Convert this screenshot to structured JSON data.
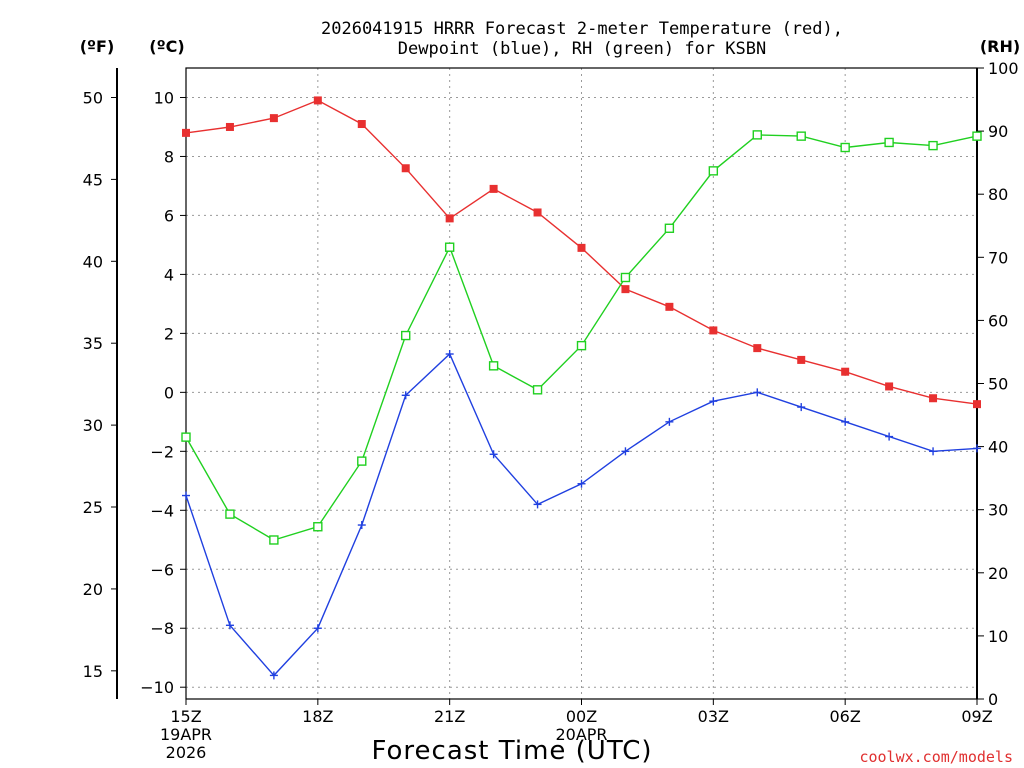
{
  "title_line1": "2026041915 HRRR Forecast 2-meter Temperature (red),",
  "title_line2": "Dewpoint (blue), RH (green) for KSBN",
  "credit": "coolwx.com/models",
  "colors": {
    "temperature": "#e83030",
    "dewpoint": "#2040e0",
    "rh": "#20d020",
    "axis": "#000000"
  },
  "chart_data": {
    "type": "line",
    "title": "2026041915 HRRR Forecast 2-meter Temperature (red), Dewpoint (blue), RH (green) for KSBN",
    "xlabel": "Forecast Time (UTC)",
    "units": {
      "fahrenheit": "(ºF)",
      "celsius": "(ºC)",
      "rh": "(RH)"
    },
    "x_hours": [
      0,
      1,
      2,
      3,
      4,
      5,
      6,
      7,
      8,
      9,
      10,
      11,
      12,
      13,
      14,
      15,
      16,
      17,
      18
    ],
    "x_ticks": [
      {
        "hour": 0,
        "lines": [
          "15Z",
          "19APR",
          "2026"
        ]
      },
      {
        "hour": 3,
        "lines": [
          "18Z"
        ]
      },
      {
        "hour": 6,
        "lines": [
          "21Z"
        ]
      },
      {
        "hour": 9,
        "lines": [
          "00Z",
          "20APR"
        ]
      },
      {
        "hour": 12,
        "lines": [
          "03Z"
        ]
      },
      {
        "hour": 15,
        "lines": [
          "06Z"
        ]
      },
      {
        "hour": 18,
        "lines": [
          "09Z"
        ]
      }
    ],
    "ylim_celsius": [
      -10.4,
      11.0
    ],
    "ylim_rh": [
      0,
      100
    ],
    "celsius_ticks": [
      -10,
      -8,
      -6,
      -4,
      -2,
      0,
      2,
      4,
      6,
      8,
      10
    ],
    "fahrenheit_ticks": [
      15,
      20,
      25,
      30,
      35,
      40,
      45,
      50
    ],
    "rh_ticks": [
      0,
      10,
      20,
      30,
      40,
      50,
      60,
      70,
      80,
      90,
      100
    ],
    "series": [
      {
        "name": "Temperature (red)",
        "axis": "celsius",
        "marker": "filled-square",
        "values": [
          8.8,
          9.0,
          9.3,
          9.9,
          9.1,
          7.6,
          5.9,
          6.9,
          6.1,
          4.9,
          3.5,
          2.9,
          2.1,
          1.5,
          1.1,
          0.7,
          0.2,
          -0.2,
          -0.4
        ]
      },
      {
        "name": "Dewpoint (blue)",
        "axis": "celsius",
        "marker": "plus",
        "values": [
          -3.5,
          -7.9,
          -9.6,
          -8.0,
          -4.5,
          -0.1,
          1.3,
          -2.1,
          -3.8,
          -3.1,
          -2.0,
          -1.0,
          -0.3,
          0.0,
          -0.5,
          -1.0,
          -1.5,
          -2.0,
          -1.9
        ]
      },
      {
        "name": "RH (green)",
        "axis": "rh",
        "marker": "open-square",
        "values": [
          41.5,
          29.3,
          25.2,
          27.3,
          37.7,
          57.6,
          71.6,
          52.8,
          49.0,
          56.0,
          66.8,
          74.6,
          83.7,
          89.4,
          89.2,
          87.4,
          88.2,
          87.7,
          89.2
        ]
      }
    ]
  }
}
